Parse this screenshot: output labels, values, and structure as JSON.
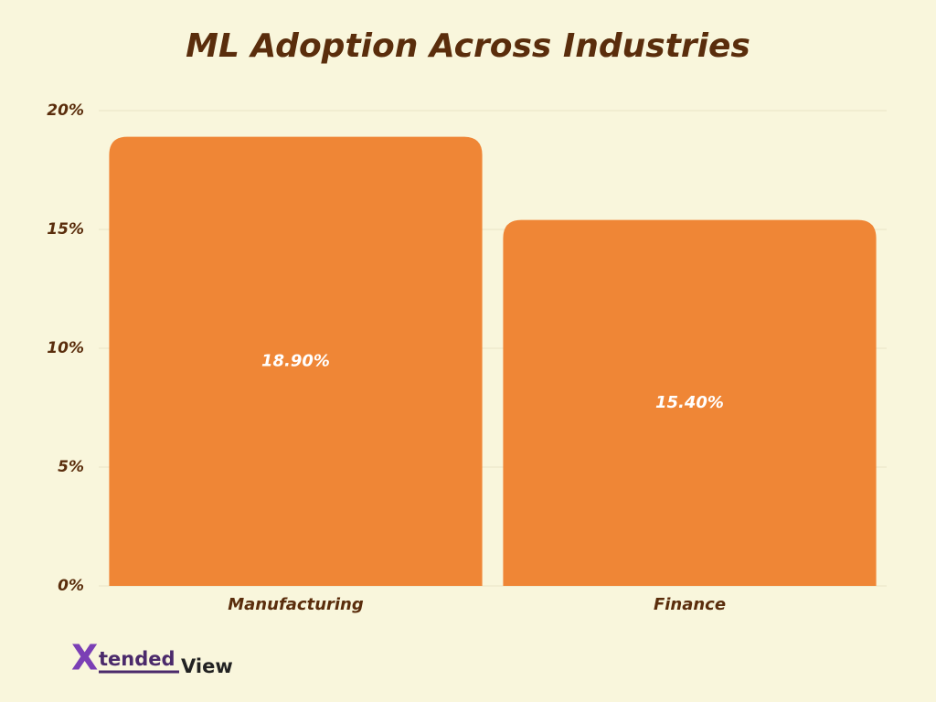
{
  "chart_data": {
    "type": "bar",
    "title": "ML Adoption Across Industries",
    "categories": [
      "Manufacturing",
      "Finance"
    ],
    "values": [
      18.9,
      15.4
    ],
    "value_labels": [
      "18.90%",
      "15.40%"
    ],
    "color": "#ef8636",
    "ylim": [
      0,
      20
    ],
    "yticks": [
      {
        "value": 0,
        "label": "0%"
      },
      {
        "value": 5,
        "label": "5%"
      },
      {
        "value": 10,
        "label": "10%"
      },
      {
        "value": 15,
        "label": "15%"
      },
      {
        "value": 20,
        "label": "20%"
      }
    ],
    "grid": true
  },
  "brand": {
    "initial": "X",
    "middle": "tended",
    "end": "View"
  }
}
